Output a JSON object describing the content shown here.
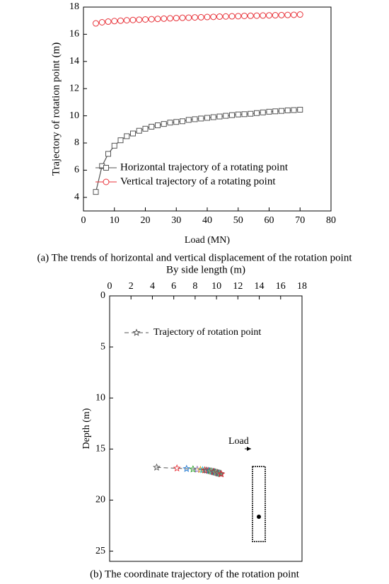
{
  "chart_data": [
    {
      "type": "line",
      "x_label": "Load (MN)",
      "y_label": "Trajectory of rotation point (m)",
      "caption": "(a) The trends of horizontal and vertical displacement of the rotation point",
      "x": [
        4,
        6,
        8,
        10,
        12,
        14,
        16,
        18,
        20,
        22,
        24,
        26,
        28,
        30,
        32,
        34,
        36,
        38,
        40,
        42,
        44,
        46,
        48,
        50,
        52,
        54,
        56,
        58,
        60,
        62,
        64,
        66,
        68,
        70
      ],
      "series": [
        {
          "name": "Horizontal trajectory of a rotating point",
          "color": "#555555",
          "marker": "square",
          "values": [
            4.4,
            6.3,
            7.2,
            7.8,
            8.2,
            8.5,
            8.7,
            8.9,
            9.05,
            9.2,
            9.3,
            9.4,
            9.5,
            9.55,
            9.6,
            9.7,
            9.75,
            9.8,
            9.85,
            9.9,
            9.95,
            10.0,
            10.05,
            10.1,
            10.12,
            10.15,
            10.2,
            10.25,
            10.3,
            10.33,
            10.36,
            10.4,
            10.42,
            10.45
          ]
        },
        {
          "name": "Vertical trajectory of a rotating point",
          "color": "#e8333a",
          "marker": "circle",
          "values": [
            16.8,
            16.88,
            16.93,
            16.97,
            17.0,
            17.03,
            17.05,
            17.07,
            17.09,
            17.11,
            17.13,
            17.15,
            17.17,
            17.19,
            17.21,
            17.22,
            17.24,
            17.25,
            17.27,
            17.28,
            17.3,
            17.31,
            17.32,
            17.33,
            17.35,
            17.36,
            17.37,
            17.38,
            17.39,
            17.4,
            17.41,
            17.42,
            17.43,
            17.45
          ]
        }
      ],
      "xlim": [
        0,
        80
      ],
      "xticks": [
        0,
        10,
        20,
        30,
        40,
        50,
        60,
        70,
        80
      ],
      "ylim": [
        3,
        18
      ],
      "yticks": [
        4,
        6,
        8,
        10,
        12,
        14,
        16,
        18
      ]
    },
    {
      "type": "scatter",
      "x_label": "By side length (m)",
      "y_label": "Depth (m)",
      "caption": "(b) The coordinate trajectory of the rotation point",
      "annotation": "Load",
      "series": [
        {
          "name": "Trajectory of rotation point",
          "color": "#555555",
          "point_colors": [
            "#555555",
            "#e8333a",
            "#1f77d0",
            "#2ca02c",
            "#9467bd",
            "#e0a020",
            "#17becf",
            "#d62728"
          ],
          "x": [
            4.4,
            6.3,
            7.2,
            7.8,
            8.2,
            8.5,
            8.7,
            8.9,
            9.05,
            9.2,
            9.3,
            9.4,
            9.5,
            9.55,
            9.6,
            9.7,
            9.75,
            9.8,
            9.85,
            9.9,
            9.95,
            10.0,
            10.05,
            10.1,
            10.12,
            10.15,
            10.2,
            10.25,
            10.3,
            10.33,
            10.36,
            10.4,
            10.42,
            10.45
          ],
          "y": [
            16.8,
            16.88,
            16.93,
            16.97,
            17.0,
            17.03,
            17.05,
            17.07,
            17.09,
            17.11,
            17.13,
            17.15,
            17.17,
            17.19,
            17.21,
            17.22,
            17.24,
            17.25,
            17.27,
            17.28,
            17.3,
            17.31,
            17.32,
            17.33,
            17.35,
            17.36,
            17.37,
            17.38,
            17.39,
            17.4,
            17.41,
            17.42,
            17.43,
            17.45
          ]
        }
      ],
      "xlim": [
        0,
        18
      ],
      "xticks": [
        0,
        2,
        4,
        6,
        8,
        10,
        12,
        14,
        16,
        18
      ],
      "ylim": [
        0,
        26
      ],
      "yticks": [
        0,
        5,
        10,
        15,
        20,
        25
      ],
      "y_inverted": true
    }
  ]
}
